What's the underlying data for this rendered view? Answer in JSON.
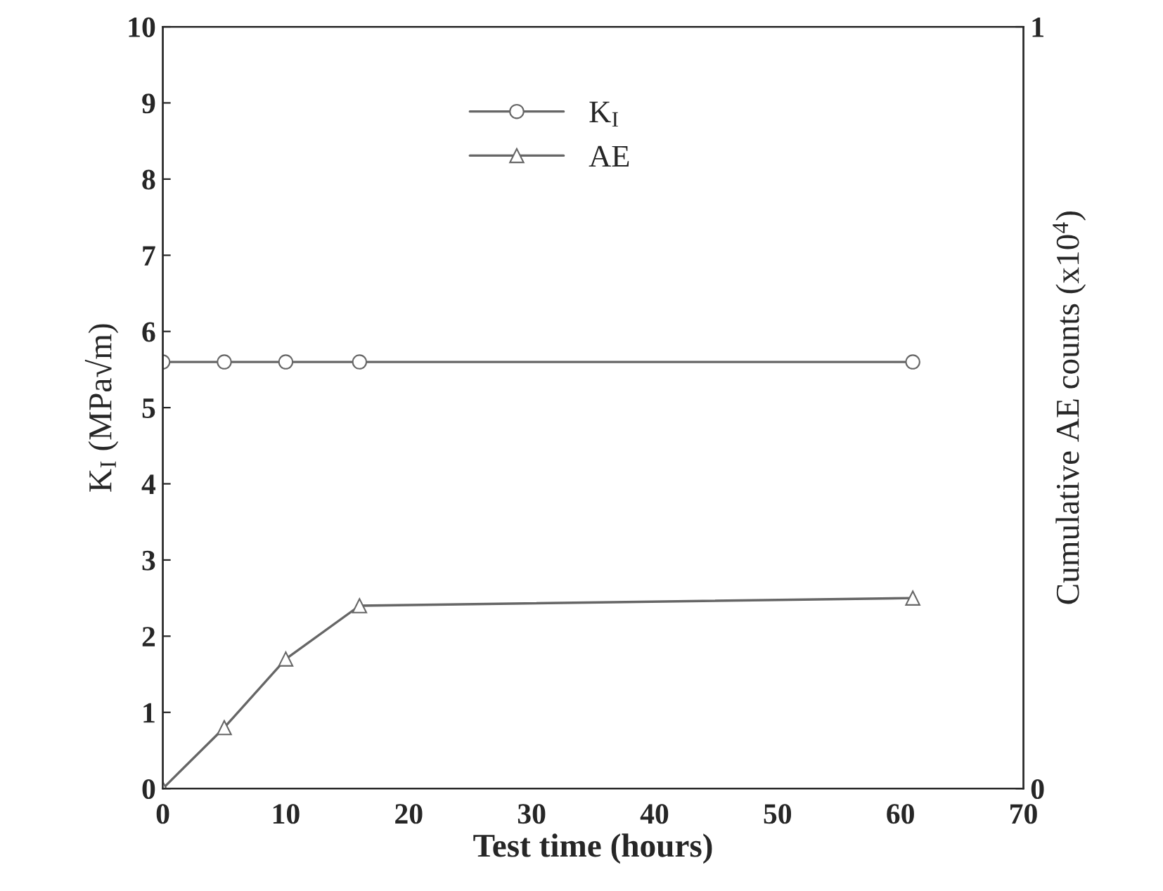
{
  "chart_data": {
    "type": "line",
    "xlabel": "Test time (hours)",
    "ylabel": "K$_{I}$ (MPa√m)",
    "y2label": "Cumulative AE counts (x10$^{4}$)",
    "xlim": [
      0,
      70
    ],
    "xticks": [
      0,
      10,
      20,
      30,
      40,
      50,
      60,
      70
    ],
    "ylim": [
      0,
      10
    ],
    "yticks": [
      0,
      1,
      2,
      3,
      4,
      5,
      6,
      7,
      8,
      9,
      10
    ],
    "y2lim": [
      0,
      1
    ],
    "y2ticks": [
      0,
      1
    ],
    "legend": "top",
    "grid": false,
    "series": [
      {
        "name": "K$_{I}$",
        "color": "#666666",
        "marker": "circle",
        "x": [
          0,
          5,
          10,
          16,
          61
        ],
        "values": [
          5.6,
          5.6,
          5.6,
          5.6,
          5.6
        ]
      },
      {
        "name": "AE",
        "color": "#666666",
        "marker": "triangle",
        "axis": "y2",
        "x": [
          0,
          5,
          10,
          16,
          61
        ],
        "values": [
          0,
          0.08,
          0.17,
          0.24,
          0.25
        ]
      }
    ]
  }
}
